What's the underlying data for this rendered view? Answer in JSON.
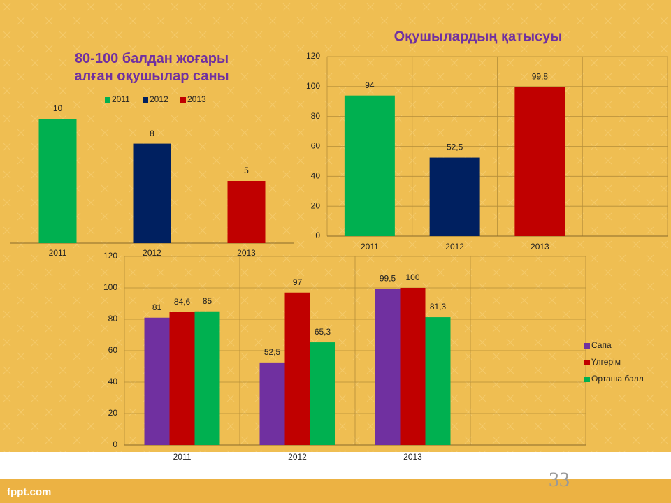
{
  "chart_data": [
    {
      "type": "bar",
      "title": "80-100 балдан жоғары алған оқушылар саны",
      "categories": [
        "2011",
        "2012",
        "2013"
      ],
      "values": [
        10,
        8,
        5
      ],
      "colors": [
        "#00b050",
        "#002060",
        "#c00000"
      ],
      "legend": true
    },
    {
      "type": "bar",
      "title": "Оқушылардың қатысуы",
      "categories": [
        "2011",
        "2012",
        "2013",
        null
      ],
      "values": [
        94,
        52.5,
        99.8,
        null
      ],
      "value_labels": [
        "94",
        "52,5",
        "99,8",
        null
      ],
      "colors": [
        "#00b050",
        "#002060",
        "#c00000",
        null
      ],
      "ylim": [
        0,
        120
      ],
      "yticks": [
        0,
        20,
        40,
        60,
        80,
        100,
        120
      ],
      "grid": true
    },
    {
      "type": "bar",
      "categories": [
        "2011",
        "2012",
        "2013",
        null
      ],
      "series": [
        {
          "name": "Сапа",
          "color": "#7030a0",
          "values": [
            81,
            52.5,
            99.5,
            null
          ],
          "value_labels": [
            "81",
            "52,5",
            "99,5",
            null
          ]
        },
        {
          "name": "Үлгерім",
          "color": "#c00000",
          "values": [
            84.6,
            97,
            100,
            null
          ],
          "value_labels": [
            "84,6",
            "97",
            "100",
            null
          ]
        },
        {
          "name": "Орташа балл",
          "color": "#00b050",
          "values": [
            85,
            65.3,
            81.3,
            null
          ],
          "value_labels": [
            "85",
            "65,3",
            "81,3",
            null
          ]
        }
      ],
      "ylim": [
        0,
        120
      ],
      "yticks": [
        0,
        20,
        40,
        60,
        80,
        100,
        120
      ],
      "grid": true,
      "legend": "right"
    }
  ],
  "page_number": "33",
  "logo": "fppt.com"
}
